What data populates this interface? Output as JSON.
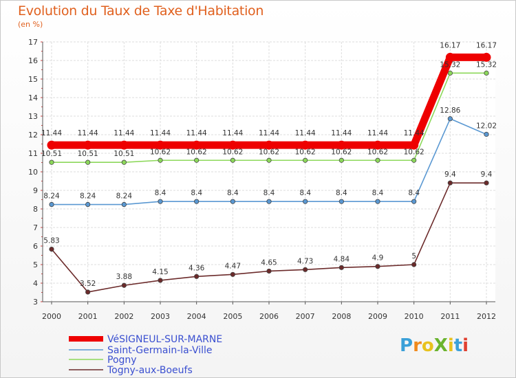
{
  "title": "Evolution du Taux de Taxe d'Habitation",
  "subtitle": "(en %)",
  "logo": {
    "text": "ProXiti",
    "colors": [
      "#3aa0d8",
      "#f08a1e",
      "#e8c21e",
      "#6ab42e",
      "#e8c21e",
      "#3aa0d8",
      "#e04030"
    ]
  },
  "chart_data": {
    "type": "line",
    "title": "Evolution du Taux de Taxe d'Habitation",
    "ylabel": "(en %)",
    "xlabel": "",
    "x": [
      "2000",
      "2001",
      "2002",
      "2003",
      "2004",
      "2005",
      "2006",
      "2007",
      "2008",
      "2009",
      "2010",
      "2011",
      "2012"
    ],
    "ylim": [
      3,
      17
    ],
    "yticks": [
      3,
      4,
      5,
      6,
      7,
      8,
      9,
      10,
      11,
      12,
      13,
      14,
      15,
      16,
      17
    ],
    "grid": true,
    "legend_position": "bottom-left",
    "series": [
      {
        "name": "VéSIGNEUL-SUR-MARNE",
        "color": "#ee0000",
        "values": [
          11.44,
          11.44,
          11.44,
          11.44,
          11.44,
          11.44,
          11.44,
          11.44,
          11.44,
          11.44,
          11.44,
          16.17,
          16.17
        ],
        "labels": [
          "11.44",
          "11.44",
          "11.44",
          "11.44",
          "11.44",
          "11.44",
          "11.44",
          "11.44",
          "11.44",
          "11.44",
          "11.44",
          "16.17",
          "16.17"
        ]
      },
      {
        "name": "Saint-Germain-la-Ville",
        "color": "#5a98d2",
        "values": [
          8.24,
          8.24,
          8.24,
          8.4,
          8.4,
          8.4,
          8.4,
          8.4,
          8.4,
          8.4,
          8.4,
          12.86,
          12.02
        ],
        "labels": [
          "8.24",
          "8.24",
          "8.24",
          "8.4",
          "8.4",
          "8.4",
          "8.4",
          "8.4",
          "8.4",
          "8.4",
          "8.4",
          "12.86",
          "12.02"
        ]
      },
      {
        "name": "Pogny",
        "color": "#8cd85a",
        "values": [
          10.51,
          10.51,
          10.51,
          10.62,
          10.62,
          10.62,
          10.62,
          10.62,
          10.62,
          10.62,
          10.62,
          15.32,
          15.32
        ],
        "labels": [
          "10.51",
          "10.51",
          "10.51",
          "10.62",
          "10.62",
          "10.62",
          "10.62",
          "10.62",
          "10.62",
          "10.62",
          "10.62",
          "15.32",
          "15.32"
        ]
      },
      {
        "name": "Togny-aux-Boeufs",
        "color": "#6b2a2a",
        "values": [
          5.83,
          3.52,
          3.88,
          4.15,
          4.36,
          4.47,
          4.65,
          4.73,
          4.84,
          4.9,
          5,
          9.4,
          9.4
        ],
        "labels": [
          "5.83",
          "3.52",
          "3.88",
          "4.15",
          "4.36",
          "4.47",
          "4.65",
          "4.73",
          "4.84",
          "4.9",
          "5",
          "9.4",
          "9.4"
        ]
      }
    ]
  }
}
